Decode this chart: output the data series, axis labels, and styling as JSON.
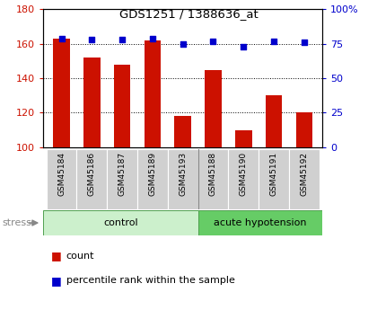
{
  "title": "GDS1251 / 1388636_at",
  "samples": [
    "GSM45184",
    "GSM45186",
    "GSM45187",
    "GSM45189",
    "GSM45193",
    "GSM45188",
    "GSM45190",
    "GSM45191",
    "GSM45192"
  ],
  "counts": [
    163,
    152,
    148,
    162,
    118,
    145,
    110,
    130,
    120
  ],
  "percentiles": [
    79,
    78,
    78,
    79,
    75,
    77,
    73,
    77,
    76
  ],
  "group_labels": [
    "control",
    "acute hypotension"
  ],
  "group_colors_light": [
    "#d8f5d0",
    "#90ee90"
  ],
  "group_colors_dark": [
    "#90ee90",
    "#50c050"
  ],
  "ylim_left": [
    100,
    180
  ],
  "ylim_right": [
    0,
    100
  ],
  "yticks_left": [
    100,
    120,
    140,
    160,
    180
  ],
  "yticks_right": [
    0,
    25,
    50,
    75,
    100
  ],
  "ytick_right_labels": [
    "0",
    "25",
    "50",
    "75",
    "100%"
  ],
  "bar_color": "#cc1100",
  "dot_color": "#0000cc",
  "bar_width": 0.55,
  "left_tick_color": "#cc1100",
  "right_tick_color": "#0000cc",
  "stress_label": "stress",
  "legend_count_label": "count",
  "legend_pct_label": "percentile rank within the sample",
  "background_color": "#ffffff",
  "group_boundary": 4.5,
  "n_control": 5,
  "n_total": 9
}
